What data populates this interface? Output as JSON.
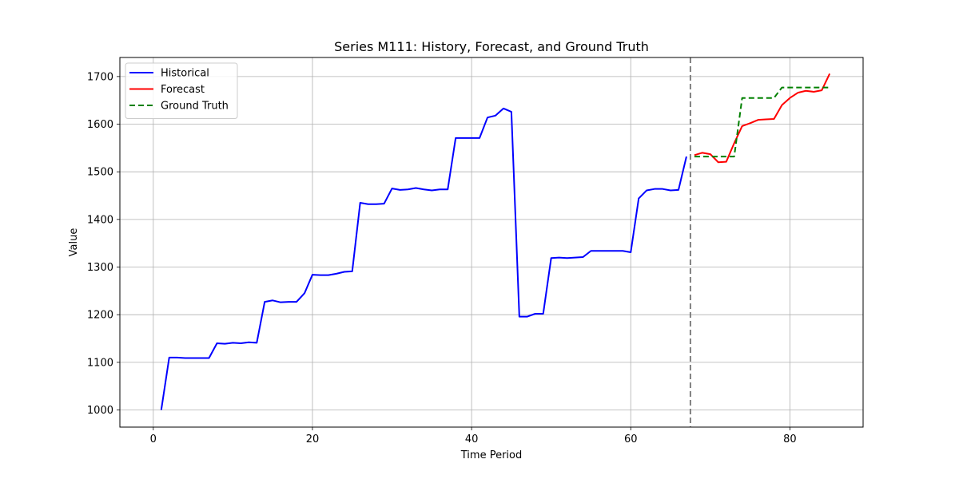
{
  "chart_data": {
    "type": "line",
    "title": "Series M111: History, Forecast, and Ground Truth",
    "xlabel": "Time Period",
    "ylabel": "Value",
    "xlim": [
      -4.2,
      89.2
    ],
    "ylim": [
      964,
      1740
    ],
    "xticks": [
      0,
      20,
      40,
      60,
      80
    ],
    "yticks": [
      1000,
      1100,
      1200,
      1300,
      1400,
      1500,
      1600,
      1700
    ],
    "grid": true,
    "legend_position": "top-left",
    "vline": {
      "x": 67.5,
      "color": "#808080",
      "style": "dashed"
    },
    "series": [
      {
        "name": "Historical",
        "color": "#0000ff",
        "style": "solid",
        "x": [
          1,
          2,
          3,
          4,
          5,
          6,
          7,
          8,
          9,
          10,
          11,
          12,
          13,
          14,
          15,
          16,
          17,
          18,
          19,
          20,
          21,
          22,
          23,
          24,
          25,
          26,
          27,
          28,
          29,
          30,
          31,
          32,
          33,
          34,
          35,
          36,
          37,
          38,
          39,
          40,
          41,
          42,
          43,
          44,
          45,
          46,
          47,
          48,
          49,
          50,
          51,
          52,
          53,
          54,
          55,
          56,
          57,
          58,
          59,
          60,
          61,
          62,
          63,
          64,
          65,
          66,
          67
        ],
        "values": [
          1000,
          1110,
          1110,
          1109,
          1109,
          1109,
          1109,
          1140,
          1139,
          1141,
          1140,
          1142,
          1141,
          1227,
          1230,
          1226,
          1227,
          1227,
          1245,
          1284,
          1283,
          1283,
          1286,
          1290,
          1291,
          1435,
          1432,
          1432,
          1433,
          1465,
          1462,
          1463,
          1466,
          1463,
          1461,
          1463,
          1463,
          1571,
          1571,
          1571,
          1571,
          1614,
          1618,
          1633,
          1626,
          1196,
          1196,
          1202,
          1202,
          1319,
          1320,
          1319,
          1320,
          1321,
          1334,
          1334,
          1334,
          1334,
          1334,
          1331,
          1444,
          1461,
          1464,
          1464,
          1461,
          1462,
          1532
        ]
      },
      {
        "name": "Forecast",
        "color": "#ff0000",
        "style": "solid",
        "x": [
          68,
          69,
          70,
          71,
          72,
          73,
          74,
          75,
          76,
          77,
          78,
          79,
          80,
          81,
          82,
          83,
          84,
          85
        ],
        "values": [
          1535,
          1540,
          1537,
          1520,
          1521,
          1560,
          1596,
          1602,
          1609,
          1610,
          1611,
          1640,
          1655,
          1666,
          1670,
          1668,
          1671,
          1706
        ]
      },
      {
        "name": "Ground Truth",
        "color": "#008000",
        "style": "dashed",
        "x": [
          68,
          69,
          70,
          71,
          72,
          73,
          74,
          75,
          76,
          77,
          78,
          79,
          80,
          81,
          82,
          83,
          84,
          85
        ],
        "values": [
          1532,
          1532,
          1532,
          1532,
          1532,
          1532,
          1655,
          1655,
          1655,
          1655,
          1655,
          1677,
          1677,
          1677,
          1677,
          1677,
          1677,
          1677
        ]
      }
    ]
  }
}
